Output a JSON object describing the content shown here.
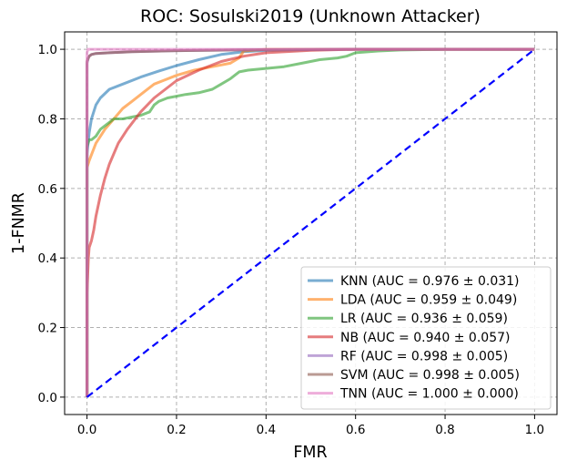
{
  "chart_data": {
    "type": "line",
    "title": "ROC: Sosulski2019 (Unknown Attacker)",
    "xlabel": "FMR",
    "ylabel": "1-FNMR",
    "xlim": [
      -0.05,
      1.05
    ],
    "ylim": [
      -0.05,
      1.05
    ],
    "xticks": [
      0.0,
      0.2,
      0.4,
      0.6,
      0.8,
      1.0
    ],
    "yticks": [
      0.0,
      0.2,
      0.4,
      0.6,
      0.8,
      1.0
    ],
    "xtick_labels": [
      "0.0",
      "0.2",
      "0.4",
      "0.6",
      "0.8",
      "1.0"
    ],
    "ytick_labels": [
      "0.0",
      "0.2",
      "0.4",
      "0.6",
      "0.8",
      "1.0"
    ],
    "grid": true,
    "legend_position": "lower-right",
    "series": [
      {
        "name": "KNN (AUC = 0.976 ± 0.031)",
        "color": "#1f77b4",
        "x": [
          0,
          0.0,
          0.005,
          0.01,
          0.02,
          0.03,
          0.05,
          0.08,
          0.12,
          0.16,
          0.2,
          0.25,
          0.3,
          0.35,
          0.4,
          0.5,
          0.6,
          0.8,
          1.0
        ],
        "y": [
          0,
          0.7,
          0.76,
          0.8,
          0.84,
          0.86,
          0.885,
          0.9,
          0.92,
          0.937,
          0.953,
          0.97,
          0.985,
          0.993,
          0.997,
          0.999,
          1.0,
          1.0,
          1.0
        ]
      },
      {
        "name": "LDA (AUC = 0.959 ± 0.049)",
        "color": "#ff7f0e",
        "x": [
          0,
          0.0,
          0.005,
          0.02,
          0.04,
          0.06,
          0.08,
          0.1,
          0.13,
          0.15,
          0.17,
          0.2,
          0.24,
          0.28,
          0.32,
          0.34,
          0.35,
          0.4,
          0.6,
          1.0
        ],
        "y": [
          0,
          0.66,
          0.68,
          0.73,
          0.77,
          0.8,
          0.83,
          0.85,
          0.88,
          0.9,
          0.91,
          0.925,
          0.94,
          0.95,
          0.96,
          0.975,
          0.995,
          1.0,
          1.0,
          1.0
        ]
      },
      {
        "name": "LR (AUC = 0.936 ± 0.059)",
        "color": "#2ca02c",
        "x": [
          0,
          0.0,
          0.005,
          0.01,
          0.02,
          0.03,
          0.04,
          0.05,
          0.06,
          0.08,
          0.1,
          0.12,
          0.14,
          0.15,
          0.16,
          0.18,
          0.2,
          0.22,
          0.25,
          0.28,
          0.3,
          0.32,
          0.33,
          0.34,
          0.36,
          0.4,
          0.44,
          0.48,
          0.52,
          0.56,
          0.58,
          0.6,
          0.65,
          0.7,
          0.8,
          1.0
        ],
        "y": [
          0,
          0.72,
          0.74,
          0.74,
          0.75,
          0.77,
          0.78,
          0.79,
          0.8,
          0.8,
          0.805,
          0.81,
          0.82,
          0.84,
          0.85,
          0.86,
          0.865,
          0.87,
          0.875,
          0.885,
          0.9,
          0.915,
          0.925,
          0.935,
          0.94,
          0.945,
          0.95,
          0.96,
          0.97,
          0.975,
          0.98,
          0.99,
          0.995,
          0.998,
          1.0,
          1.0
        ]
      },
      {
        "name": "NB (AUC = 0.940 ± 0.057)",
        "color": "#d62728",
        "x": [
          0,
          0.0,
          0.003,
          0.005,
          0.01,
          0.015,
          0.02,
          0.03,
          0.04,
          0.05,
          0.07,
          0.09,
          0.12,
          0.15,
          0.2,
          0.25,
          0.3,
          0.35,
          0.4,
          0.5,
          0.6,
          1.0
        ],
        "y": [
          0,
          0.3,
          0.4,
          0.43,
          0.45,
          0.48,
          0.52,
          0.58,
          0.63,
          0.67,
          0.73,
          0.77,
          0.82,
          0.86,
          0.91,
          0.94,
          0.965,
          0.98,
          0.99,
          0.997,
          1.0,
          1.0
        ]
      },
      {
        "name": "RF (AUC = 0.998 ± 0.005)",
        "color": "#9467bd",
        "x": [
          0,
          0.0,
          0.003,
          0.005,
          0.01,
          0.02,
          0.05,
          0.1,
          0.2,
          0.4,
          0.6,
          1.0
        ],
        "y": [
          0,
          0.96,
          0.975,
          0.98,
          0.985,
          0.988,
          0.99,
          0.993,
          0.996,
          0.999,
          1.0,
          1.0
        ]
      },
      {
        "name": "SVM (AUC = 0.998 ± 0.005)",
        "color": "#8c564b",
        "x": [
          0,
          0.0,
          0.003,
          0.005,
          0.01,
          0.02,
          0.05,
          0.1,
          0.2,
          0.4,
          0.6,
          1.0
        ],
        "y": [
          0,
          0.965,
          0.975,
          0.98,
          0.985,
          0.988,
          0.99,
          0.993,
          0.996,
          0.999,
          1.0,
          1.0
        ]
      },
      {
        "name": "TNN (AUC = 1.000 ± 0.000)",
        "color": "#e377c2",
        "x": [
          0,
          0.0,
          0.002,
          1.0
        ],
        "y": [
          0,
          0.99,
          1.0,
          1.0
        ]
      }
    ],
    "diagonal": {
      "x": [
        0,
        1
      ],
      "y": [
        0,
        1
      ],
      "color": "#0000ff",
      "style": "dashed"
    }
  }
}
